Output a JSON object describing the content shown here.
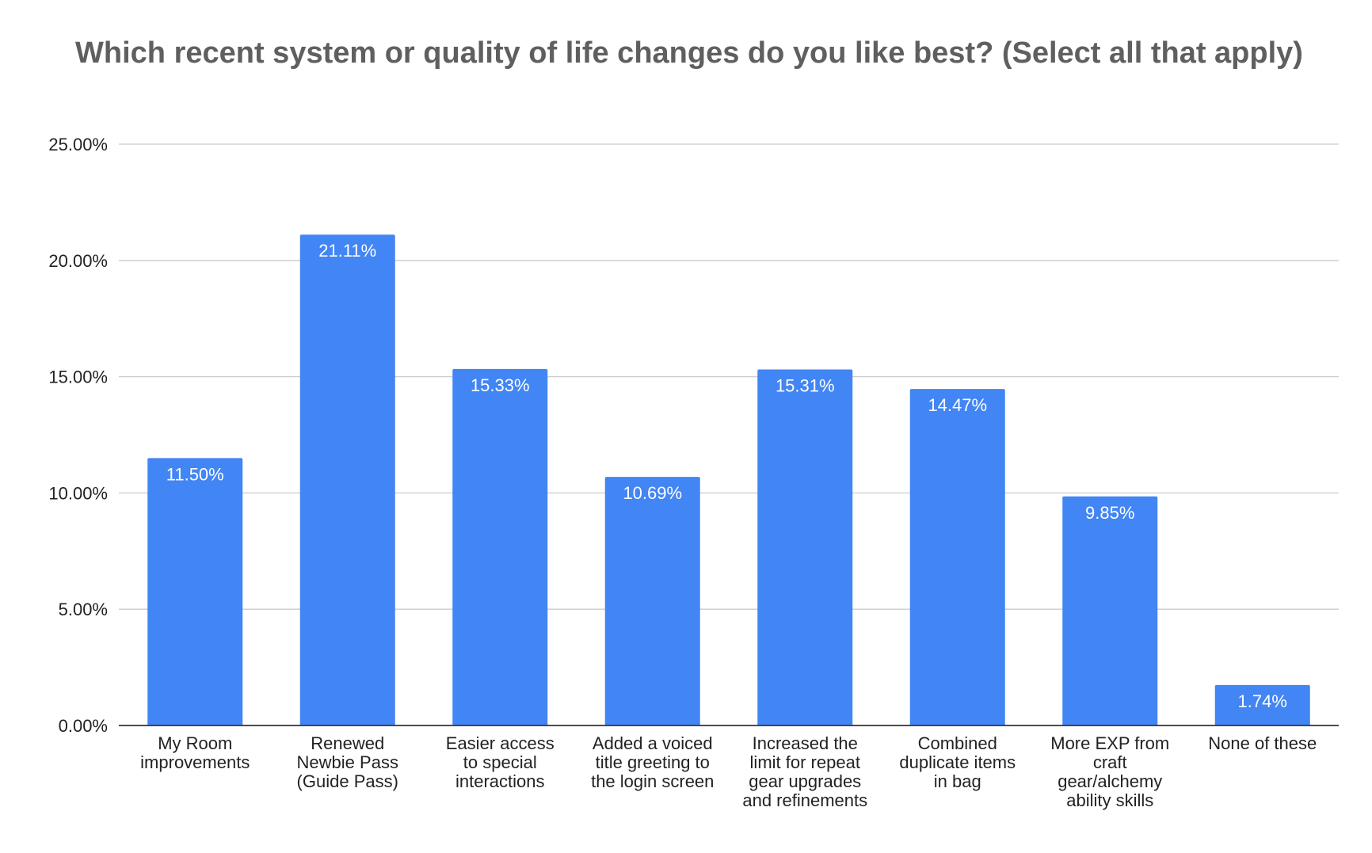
{
  "chart_data": {
    "type": "bar",
    "title": "Which recent system or quality of life changes do you like best? (Select all that apply)",
    "xlabel": "",
    "ylabel": "",
    "categories": [
      [
        "My Room",
        "improvements"
      ],
      [
        "Renewed",
        "Newbie Pass",
        "(Guide Pass)"
      ],
      [
        "Easier access",
        "to special",
        "interactions"
      ],
      [
        "Added a voiced",
        "title greeting to",
        "the login screen"
      ],
      [
        "Increased the",
        "limit for repeat",
        "gear upgrades",
        "and refinements"
      ],
      [
        "Combined",
        "duplicate items",
        "in bag"
      ],
      [
        "More EXP from",
        "craft",
        "gear/alchemy",
        "ability skills"
      ],
      [
        "None of these"
      ]
    ],
    "values": [
      11.5,
      21.11,
      15.33,
      10.69,
      15.31,
      14.47,
      9.85,
      1.74
    ],
    "data_labels": [
      "11.50%",
      "21.11%",
      "15.33%",
      "10.69%",
      "15.31%",
      "14.47%",
      "9.85%",
      "1.74%"
    ],
    "y_ticks": [
      0,
      5,
      10,
      15,
      20,
      25
    ],
    "y_tick_labels": [
      "0.00%",
      "5.00%",
      "10.00%",
      "15.00%",
      "20.00%",
      "25.00%"
    ],
    "ylim": [
      0,
      25
    ],
    "grid": true,
    "legend": "none",
    "colors": {
      "bar": "#4285f4",
      "grid": "#cccccc",
      "axis": "#333333",
      "title": "#5f5f5f",
      "label": "#222222",
      "data_label": "#ffffff"
    }
  }
}
